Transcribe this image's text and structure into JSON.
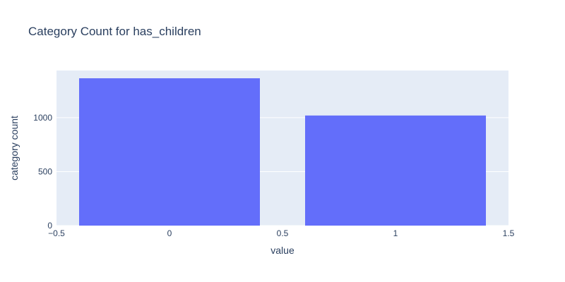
{
  "chart_data": {
    "type": "bar",
    "title": "Category Count for has_children",
    "xlabel": "value",
    "ylabel": "category count",
    "categories": [
      0,
      1
    ],
    "values": [
      1365,
      1020
    ],
    "bar_width": 0.8,
    "xlim": [
      -0.5,
      1.5
    ],
    "ylim": [
      0,
      1437
    ],
    "x_ticks": [
      -0.5,
      0,
      0.5,
      1,
      1.5
    ],
    "x_tick_labels": [
      "−0.5",
      "0",
      "0.5",
      "1",
      "1.5"
    ],
    "y_ticks": [
      0,
      500,
      1000
    ],
    "y_tick_labels": [
      "0",
      "500",
      "1000"
    ],
    "grid": true,
    "colors": {
      "bar": "#636efa",
      "plot_background": "#e5ecf6",
      "grid": "#ffffff",
      "text": "#2a3f5f"
    }
  }
}
